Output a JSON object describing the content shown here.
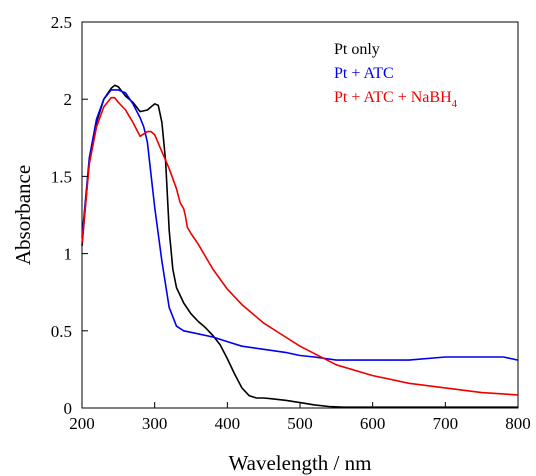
{
  "chart_data": {
    "type": "line",
    "title": "",
    "xlabel": "Wavelength / nm",
    "ylabel": "Absorbance",
    "xlim": [
      200,
      800
    ],
    "ylim": [
      0,
      2.5
    ],
    "xticks": [
      "200",
      "300",
      "400",
      "500",
      "600",
      "700",
      "800"
    ],
    "yticks": [
      "0",
      "0.5",
      "1",
      "1.5",
      "2",
      "2.5"
    ],
    "grid": false,
    "legend_placement": "top-right",
    "series": [
      {
        "name": "Pt only",
        "color": "#000000",
        "points": [
          [
            200,
            1.05
          ],
          [
            210,
            1.6
          ],
          [
            220,
            1.85
          ],
          [
            230,
            2.0
          ],
          [
            240,
            2.07
          ],
          [
            245,
            2.09
          ],
          [
            250,
            2.08
          ],
          [
            260,
            2.02
          ],
          [
            270,
            1.98
          ],
          [
            280,
            1.92
          ],
          [
            290,
            1.93
          ],
          [
            300,
            1.97
          ],
          [
            305,
            1.96
          ],
          [
            310,
            1.85
          ],
          [
            315,
            1.6
          ],
          [
            320,
            1.15
          ],
          [
            325,
            0.9
          ],
          [
            330,
            0.78
          ],
          [
            340,
            0.68
          ],
          [
            350,
            0.61
          ],
          [
            360,
            0.56
          ],
          [
            370,
            0.52
          ],
          [
            380,
            0.47
          ],
          [
            390,
            0.41
          ],
          [
            400,
            0.32
          ],
          [
            410,
            0.22
          ],
          [
            420,
            0.13
          ],
          [
            430,
            0.08
          ],
          [
            440,
            0.065
          ],
          [
            450,
            0.065
          ],
          [
            460,
            0.06
          ],
          [
            480,
            0.05
          ],
          [
            500,
            0.035
          ],
          [
            520,
            0.02
          ],
          [
            540,
            0.01
          ],
          [
            560,
            0.005
          ],
          [
            600,
            0.005
          ],
          [
            700,
            0.005
          ],
          [
            800,
            0.005
          ]
        ]
      },
      {
        "name": "Pt + ATC",
        "color": "#0000ee",
        "points": [
          [
            200,
            1.1
          ],
          [
            210,
            1.62
          ],
          [
            220,
            1.87
          ],
          [
            230,
            2.0
          ],
          [
            240,
            2.06
          ],
          [
            250,
            2.06
          ],
          [
            260,
            2.04
          ],
          [
            270,
            1.97
          ],
          [
            280,
            1.88
          ],
          [
            285,
            1.82
          ],
          [
            290,
            1.72
          ],
          [
            300,
            1.3
          ],
          [
            310,
            0.95
          ],
          [
            320,
            0.65
          ],
          [
            330,
            0.53
          ],
          [
            340,
            0.5
          ],
          [
            350,
            0.49
          ],
          [
            380,
            0.46
          ],
          [
            400,
            0.43
          ],
          [
            420,
            0.4
          ],
          [
            450,
            0.38
          ],
          [
            480,
            0.36
          ],
          [
            500,
            0.34
          ],
          [
            520,
            0.33
          ],
          [
            550,
            0.31
          ],
          [
            600,
            0.31
          ],
          [
            650,
            0.31
          ],
          [
            700,
            0.33
          ],
          [
            750,
            0.33
          ],
          [
            780,
            0.33
          ],
          [
            800,
            0.31
          ]
        ]
      },
      {
        "name": "Pt + ATC + NaBH4",
        "color": "#ee0000",
        "points": [
          [
            200,
            1.07
          ],
          [
            210,
            1.58
          ],
          [
            220,
            1.82
          ],
          [
            230,
            1.95
          ],
          [
            240,
            2.01
          ],
          [
            245,
            2.01
          ],
          [
            250,
            1.98
          ],
          [
            260,
            1.93
          ],
          [
            270,
            1.85
          ],
          [
            280,
            1.76
          ],
          [
            290,
            1.79
          ],
          [
            295,
            1.79
          ],
          [
            300,
            1.77
          ],
          [
            310,
            1.66
          ],
          [
            320,
            1.55
          ],
          [
            330,
            1.42
          ],
          [
            335,
            1.33
          ],
          [
            340,
            1.29
          ],
          [
            342,
            1.25
          ],
          [
            345,
            1.17
          ],
          [
            350,
            1.13
          ],
          [
            360,
            1.06
          ],
          [
            380,
            0.9
          ],
          [
            400,
            0.77
          ],
          [
            420,
            0.67
          ],
          [
            450,
            0.55
          ],
          [
            480,
            0.46
          ],
          [
            500,
            0.4
          ],
          [
            550,
            0.28
          ],
          [
            600,
            0.21
          ],
          [
            650,
            0.16
          ],
          [
            700,
            0.13
          ],
          [
            750,
            0.1
          ],
          [
            800,
            0.085
          ]
        ]
      }
    ]
  },
  "legend": {
    "pt_only": "Pt only",
    "pt_atc": "Pt + ATC",
    "pt_atc_nabh4_prefix": "Pt + ATC + NaBH",
    "pt_atc_nabh4_sub": "4"
  }
}
